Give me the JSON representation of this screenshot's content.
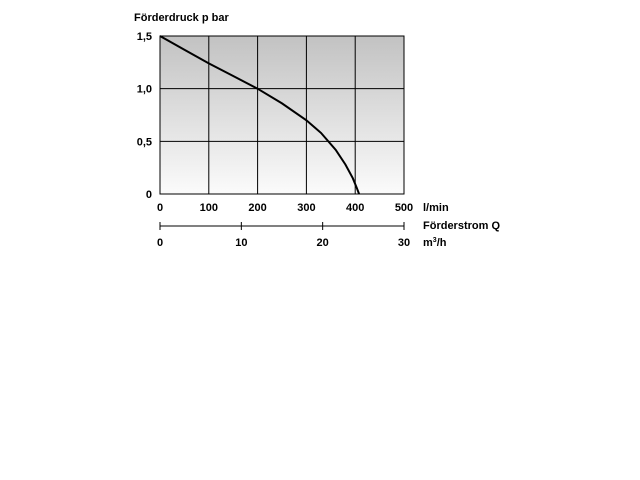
{
  "chart_data": {
    "type": "line",
    "ylabel": "Förderdruck p bar",
    "xlabel": "Förderstrom Q",
    "x_unit": "l/min",
    "x2_unit_base": "m",
    "x2_unit_sup": "3",
    "x2_unit_tail": "/h",
    "xlim": [
      0,
      500
    ],
    "ylim": [
      0,
      1.5
    ],
    "x_ticks": [
      0,
      100,
      200,
      300,
      400,
      500
    ],
    "x_tick_labels": [
      "0",
      "100",
      "200",
      "300",
      "400",
      "500"
    ],
    "y_ticks": [
      0,
      0.5,
      1.0,
      1.5
    ],
    "y_tick_labels": [
      "0",
      "0,5",
      "1,0",
      "1,5"
    ],
    "x2_ticks": [
      0,
      10,
      20,
      30
    ],
    "x2_tick_labels": [
      "0",
      "10",
      "20",
      "30"
    ],
    "x2_lim": [
      0,
      30
    ],
    "grid": true,
    "series": [
      {
        "x": [
          0,
          50,
          100,
          150,
          200,
          250,
          300,
          330,
          360,
          380,
          395,
          403,
          408
        ],
        "y": [
          1.5,
          1.37,
          1.24,
          1.12,
          1.0,
          0.86,
          0.7,
          0.58,
          0.42,
          0.28,
          0.15,
          0.06,
          0
        ]
      }
    ]
  }
}
